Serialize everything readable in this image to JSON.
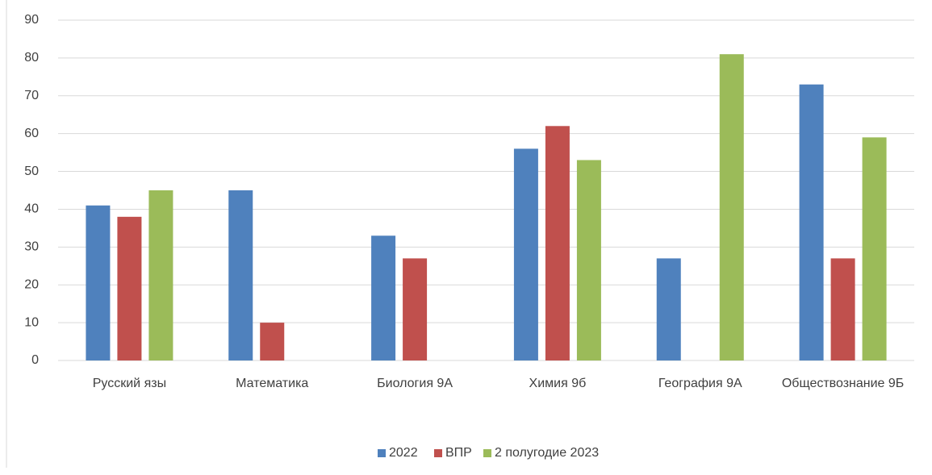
{
  "chart_data": {
    "type": "bar",
    "categories": [
      "Русский язы",
      "Математика",
      "Биология 9А",
      "Химия 9б",
      "География 9А",
      "Обществознание 9Б"
    ],
    "series": [
      {
        "name": "2022",
        "color": "#4f81bd",
        "values": [
          41,
          45,
          33,
          56,
          27,
          73
        ]
      },
      {
        "name": "ВПР",
        "color": "#c0504d",
        "values": [
          38,
          10,
          27,
          62,
          null,
          27
        ]
      },
      {
        "name": "2 полугодие 2023",
        "color": "#9bbb59",
        "values": [
          45,
          null,
          null,
          53,
          81,
          59
        ]
      }
    ],
    "ylim": [
      0,
      90
    ],
    "yticks": [
      0,
      10,
      20,
      30,
      40,
      50,
      60,
      70,
      80,
      90
    ],
    "grid": true,
    "legend": "bottom"
  }
}
